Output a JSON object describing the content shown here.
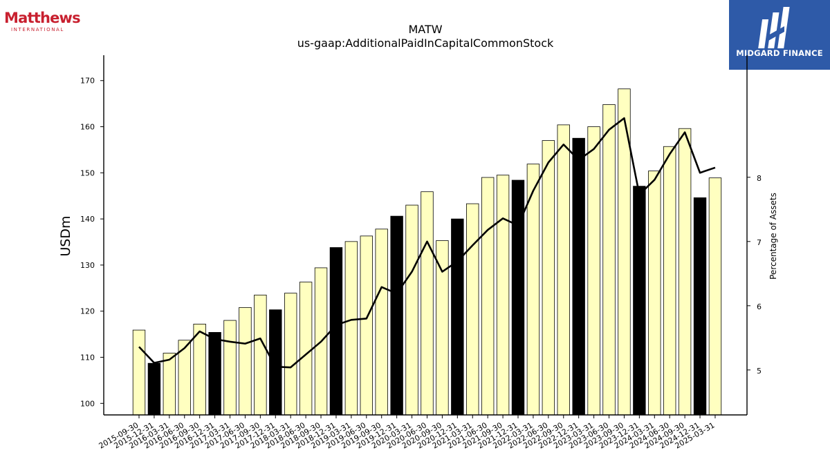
{
  "brand": {
    "left_logo_name": "Matthews",
    "left_logo_sub": "INTERNATIONAL",
    "right_logo_name": "MIDGARD FINANCE"
  },
  "colors": {
    "bar_default": "#ffffc0",
    "bar_highlight": "#000000",
    "line": "#000000",
    "logo_red": "#c8202f",
    "logo_blue": "#2e5aa8"
  },
  "chart_data": {
    "type": "bar",
    "title": "MATW",
    "subtitle": "us-gaap:AdditionalPaidInCapitalCommonStock",
    "ylabel": "USDm",
    "y2label": "Percentage of Assets",
    "ylim": [
      97.5,
      175.5
    ],
    "y2lim": [
      4.3,
      9.9
    ],
    "yticks": [
      100,
      110,
      120,
      130,
      140,
      150,
      160,
      170
    ],
    "y2ticks": [
      5,
      6,
      7,
      8
    ],
    "categories": [
      "2015-09-30",
      "2015-12-31",
      "2016-03-31",
      "2016-06-30",
      "2016-09-30",
      "2016-12-31",
      "2017-03-31",
      "2017-06-30",
      "2017-09-30",
      "2017-12-31",
      "2018-03-31",
      "2018-06-30",
      "2018-09-30",
      "2018-12-31",
      "2019-03-31",
      "2019-06-30",
      "2019-09-30",
      "2019-12-31",
      "2020-03-31",
      "2020-06-30",
      "2020-09-30",
      "2020-12-31",
      "2021-03-31",
      "2021-06-30",
      "2021-09-30",
      "2021-12-31",
      "2022-03-31",
      "2022-06-30",
      "2022-09-30",
      "2022-12-31",
      "2023-03-31",
      "2023-06-30",
      "2023-09-30",
      "2023-12-31",
      "2024-03-31",
      "2024-06-30",
      "2024-09-30",
      "2024-12-31",
      "2025-03-31"
    ],
    "series": [
      {
        "type": "bar",
        "values": [
          115.9,
          108.7,
          110.9,
          113.7,
          117.2,
          115.4,
          118.0,
          120.8,
          123.5,
          120.3,
          123.9,
          126.3,
          129.4,
          133.8,
          135.1,
          136.3,
          137.8,
          140.6,
          143.0,
          145.9,
          135.3,
          140.0,
          143.3,
          149.0,
          149.5,
          148.4,
          151.9,
          157.0,
          160.4,
          157.5,
          160.0,
          164.8,
          168.2,
          147.1,
          150.4,
          155.7,
          159.6,
          144.6,
          148.9
        ],
        "highlight": [
          false,
          true,
          false,
          false,
          false,
          true,
          false,
          false,
          false,
          true,
          false,
          false,
          false,
          true,
          false,
          false,
          false,
          true,
          false,
          false,
          false,
          true,
          false,
          false,
          false,
          true,
          false,
          false,
          false,
          true,
          false,
          false,
          false,
          true,
          false,
          false,
          false,
          true,
          false
        ]
      },
      {
        "type": "line",
        "axis": "right",
        "values": [
          5.36,
          5.11,
          5.16,
          5.34,
          5.6,
          5.48,
          5.44,
          5.41,
          5.49,
          5.05,
          5.04,
          5.24,
          5.44,
          5.7,
          5.78,
          5.8,
          6.29,
          6.19,
          6.53,
          7.0,
          6.53,
          6.69,
          6.94,
          7.18,
          7.36,
          7.25,
          7.79,
          8.23,
          8.51,
          8.27,
          8.44,
          8.74,
          8.92,
          7.73,
          7.96,
          8.36,
          8.7,
          8.07,
          8.15
        ]
      }
    ]
  }
}
